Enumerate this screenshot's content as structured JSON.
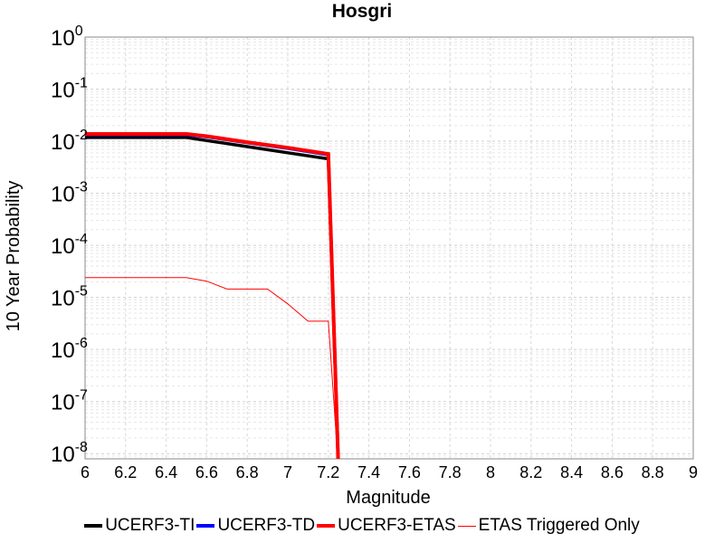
{
  "chart_data": {
    "type": "line",
    "title": "Hosgri",
    "xlabel": "Magnitude",
    "ylabel": "10 Year Probability",
    "xlim": [
      6,
      9
    ],
    "ylim_exponents": [
      -8.1,
      0
    ],
    "y_scale": "log",
    "x_ticks": [
      "6",
      "6.2",
      "6.4",
      "6.6",
      "6.8",
      "7",
      "7.2",
      "7.4",
      "7.6",
      "7.8",
      "8",
      "8.2",
      "8.4",
      "8.6",
      "8.8",
      "9"
    ],
    "y_ticks": [
      {
        "base": "10",
        "exp": "0"
      },
      {
        "base": "10",
        "exp": "-1"
      },
      {
        "base": "10",
        "exp": "-2"
      },
      {
        "base": "10",
        "exp": "-3"
      },
      {
        "base": "10",
        "exp": "-4"
      },
      {
        "base": "10",
        "exp": "-5"
      },
      {
        "base": "10",
        "exp": "-6"
      },
      {
        "base": "10",
        "exp": "-7"
      },
      {
        "base": "10",
        "exp": "-8"
      }
    ],
    "grid": true,
    "legend_position": "bottom",
    "series": [
      {
        "name": "UCERF3-TI",
        "color": "#000000",
        "width": 3.5,
        "x": [
          6.0,
          6.5,
          6.6,
          6.8,
          7.0,
          7.2,
          7.2,
          7.25
        ],
        "y": [
          0.0118,
          0.0118,
          0.0103,
          0.0079,
          0.006,
          0.0046,
          0.0046,
          1e-09
        ]
      },
      {
        "name": "UCERF3-TD",
        "color": "#0000ff",
        "width": 3.5,
        "x": [
          6.0,
          6.5,
          6.6,
          6.8,
          7.0,
          7.2,
          7.2,
          7.25
        ],
        "y": [
          0.0135,
          0.0135,
          0.0122,
          0.0094,
          0.0073,
          0.0055,
          0.0055,
          1e-09
        ]
      },
      {
        "name": "UCERF3-ETAS",
        "color": "#ff0000",
        "width": 4,
        "x": [
          6.0,
          6.5,
          6.6,
          6.8,
          7.0,
          7.2,
          7.2,
          7.25
        ],
        "y": [
          0.0138,
          0.0138,
          0.0125,
          0.0096,
          0.0075,
          0.0057,
          0.0057,
          1e-09
        ]
      },
      {
        "name": "ETAS Triggered Only",
        "color": "#ff0000",
        "width": 1,
        "x": [
          6.0,
          6.5,
          6.6,
          6.7,
          6.9,
          7.0,
          7.1,
          7.2,
          7.25
        ],
        "y": [
          2.4e-05,
          2.4e-05,
          2.05e-05,
          1.45e-05,
          1.45e-05,
          7.5e-06,
          3.5e-06,
          3.5e-06,
          1e-09
        ]
      }
    ]
  }
}
